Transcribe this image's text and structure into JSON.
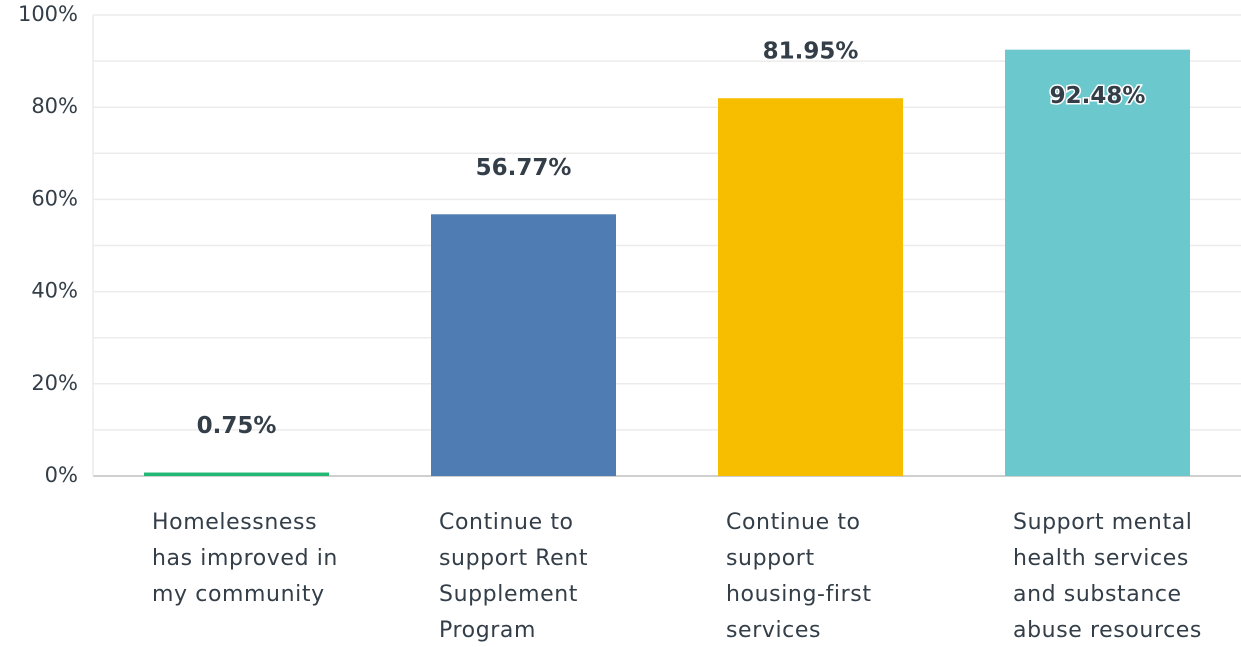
{
  "chart_data": {
    "type": "bar",
    "categories": [
      "Homelessness has improved in my community",
      "Continue to support Rent Supplement Program",
      "Continue to support housing-first services",
      "Support mental health services and substance abuse resources"
    ],
    "values": [
      0.75,
      56.77,
      81.95,
      92.48
    ],
    "value_labels": [
      "0.75%",
      "56.77%",
      "81.95%",
      "92.48%"
    ],
    "colors": [
      "#20b872",
      "#507cb4",
      "#f7be00",
      "#6bc8cc"
    ],
    "ylim": [
      0,
      100
    ],
    "yticks": [
      {
        "value": 0,
        "label": "0%"
      },
      {
        "value": 20,
        "label": "20%"
      },
      {
        "value": 40,
        "label": "40%"
      },
      {
        "value": 60,
        "label": "60%"
      },
      {
        "value": 80,
        "label": "80%"
      },
      {
        "value": 100,
        "label": "100%"
      }
    ],
    "minor_yticks": [
      10,
      30,
      50,
      70,
      90
    ],
    "grid": true
  }
}
